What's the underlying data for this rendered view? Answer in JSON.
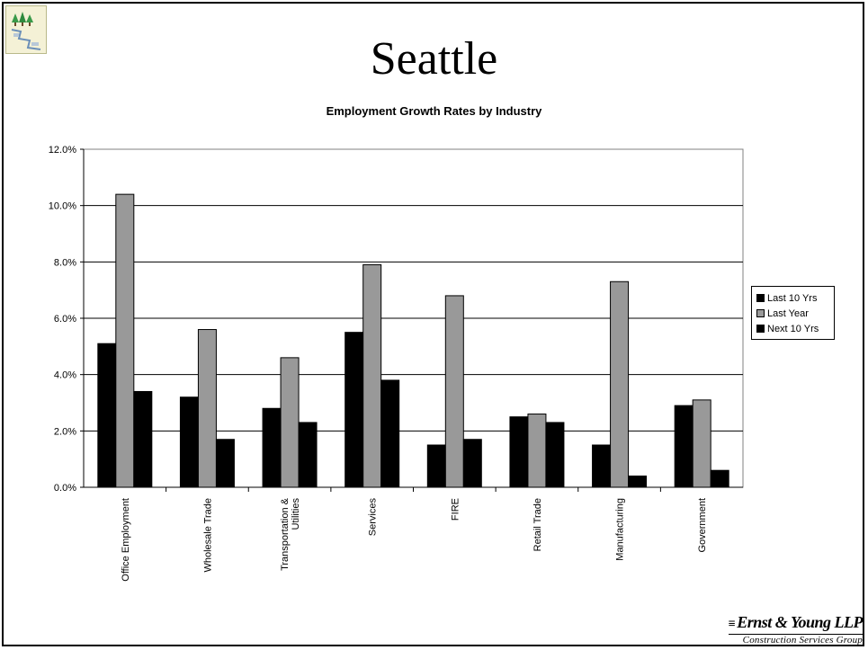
{
  "slide": {
    "title": "Seattle",
    "logo_icon": "trees-map-icon"
  },
  "footer": {
    "brand": "Ernst & Young LLP",
    "group": "Construction Services Group"
  },
  "colors": {
    "last_10_yrs": "#000000",
    "last_year": "#999999",
    "next_10_yrs": "#000000",
    "background": "#ffffff"
  },
  "chart_data": {
    "type": "bar",
    "title": "Employment Growth Rates by Industry",
    "xlabel": "",
    "ylabel": "",
    "ylim": [
      0,
      12
    ],
    "y_ticks": [
      "0.0%",
      "2.0%",
      "4.0%",
      "6.0%",
      "8.0%",
      "10.0%",
      "12.0%"
    ],
    "grid": true,
    "legend_position": "right",
    "categories": [
      "Office Employment",
      "Wholesale Trade",
      "Transportation & Utilities",
      "Services",
      "FIRE",
      "Retail Trade",
      "Manufacturing",
      "Government"
    ],
    "series": [
      {
        "name": "Last 10 Yrs",
        "values": [
          5.1,
          3.2,
          2.8,
          5.5,
          1.5,
          2.5,
          1.5,
          2.9
        ]
      },
      {
        "name": "Last Year",
        "values": [
          10.4,
          5.6,
          4.6,
          7.9,
          6.8,
          2.6,
          7.3,
          3.1
        ]
      },
      {
        "name": "Next 10 Yrs",
        "values": [
          3.4,
          1.7,
          2.3,
          3.8,
          1.7,
          2.3,
          0.4,
          0.6
        ]
      }
    ]
  }
}
